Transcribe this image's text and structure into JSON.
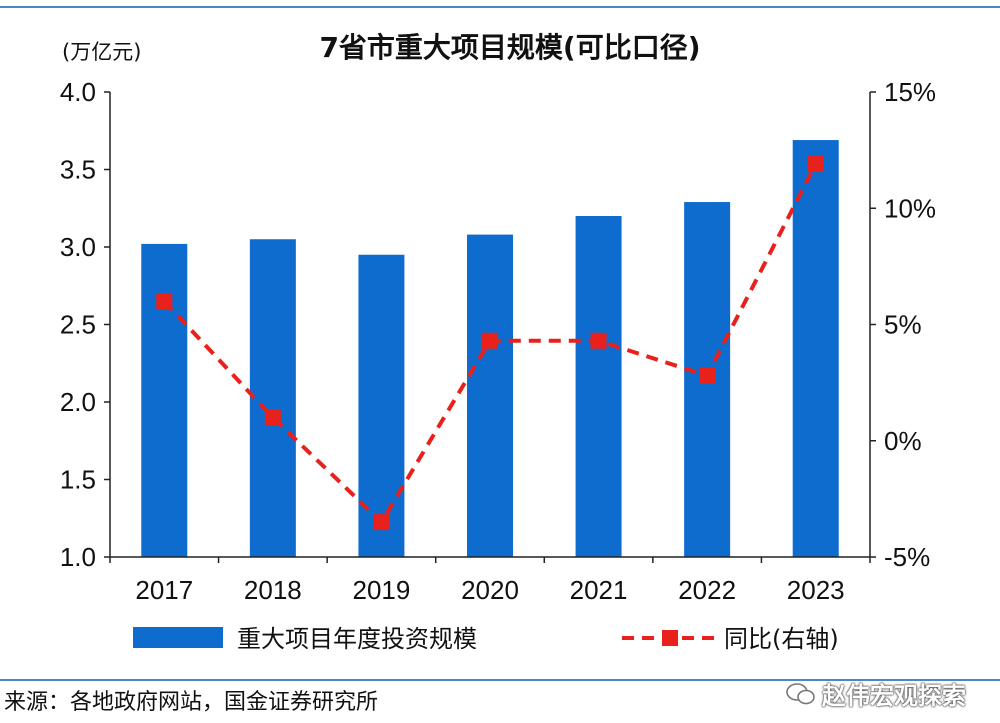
{
  "chart_data": {
    "type": "bar",
    "title": "7省市重大项目规模(可比口径)",
    "left_unit": "(万亿元)",
    "categories": [
      "2017",
      "2018",
      "2019",
      "2020",
      "2021",
      "2022",
      "2023"
    ],
    "series": [
      {
        "name": "重大项目年度投资规模",
        "type": "bar",
        "axis": "left",
        "color": "#0f6ccf",
        "values": [
          3.02,
          3.05,
          2.95,
          3.08,
          3.2,
          3.29,
          3.69
        ]
      },
      {
        "name": "同比(右轴)",
        "type": "line",
        "axis": "right",
        "color": "#e8211c",
        "values": [
          6.0,
          1.0,
          -3.5,
          4.3,
          4.3,
          2.8,
          11.9
        ]
      }
    ],
    "ylim_left": [
      1.0,
      4.0
    ],
    "yticks_left": [
      "4.0",
      "3.5",
      "3.0",
      "2.5",
      "2.0",
      "1.5",
      "1.0"
    ],
    "ylim_right": [
      -5,
      15
    ],
    "yticks_right": [
      "15%",
      "10%",
      "5%",
      "0%",
      "-5%"
    ],
    "grid": false,
    "legend_position": "bottom"
  },
  "footer": {
    "source": "来源：各地政府网站，国金证券研究所",
    "watermark": "赵伟宏观探索"
  }
}
